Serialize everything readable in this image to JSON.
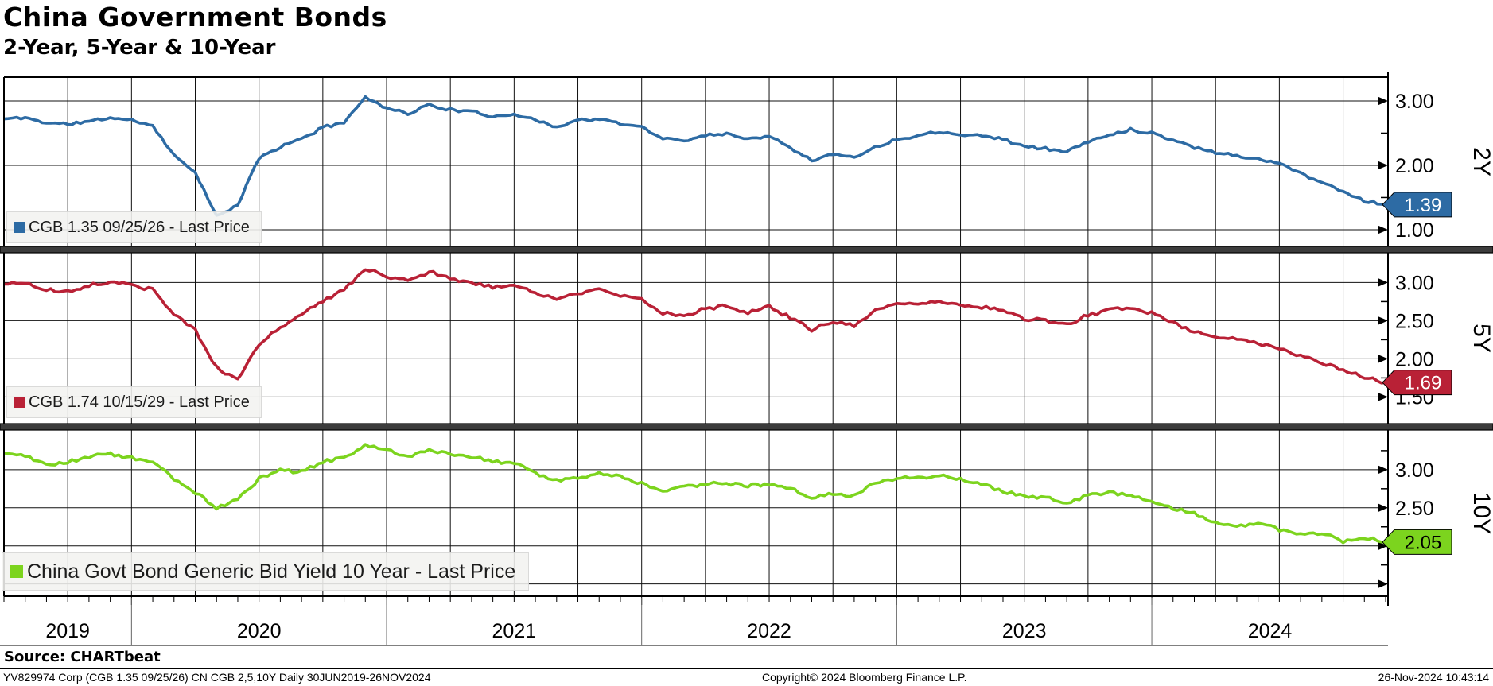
{
  "header": {
    "title": "China Government Bonds",
    "subtitle": "2-Year, 5-Year & 10-Year"
  },
  "chart_data": {
    "type": "line",
    "title": "China Government Bonds",
    "subtitle": "2-Year, 5-Year & 10-Year",
    "x_range": "30JUN2019 - 26NOV2024",
    "x_anchor_frequency": "monthly",
    "x_year_labels": [
      "2019",
      "2020",
      "2021",
      "2022",
      "2023",
      "2024"
    ],
    "grid": "quarterly vertical, labeled horizontal, arrowheads at right axis",
    "legend_position": "bottom-left of each panel",
    "panels": [
      {
        "id": "2Y",
        "axis_label": "2Y",
        "legend": "CGB 1.35 09/25/26 - Last Price",
        "color": "#2D6BA4",
        "last_price": 1.39,
        "badge_label": "1.39",
        "badge_text_color": "#ffffff",
        "ylim": [
          0.74,
          3.37
        ],
        "major_ticks": [
          {
            "v": 3.0,
            "label": "3.00"
          },
          {
            "v": 2.0,
            "label": "2.00"
          },
          {
            "v": 1.0,
            "label": "1.00"
          }
        ],
        "minor_ticks": [
          2.5,
          1.5
        ],
        "values": [
          2.72,
          2.74,
          2.66,
          2.64,
          2.68,
          2.74,
          2.7,
          2.62,
          2.15,
          1.9,
          1.2,
          1.38,
          2.12,
          2.28,
          2.42,
          2.58,
          2.68,
          3.05,
          2.9,
          2.8,
          2.94,
          2.86,
          2.83,
          2.76,
          2.8,
          2.7,
          2.6,
          2.7,
          2.72,
          2.64,
          2.6,
          2.42,
          2.38,
          2.47,
          2.5,
          2.4,
          2.47,
          2.28,
          2.08,
          2.17,
          2.13,
          2.28,
          2.4,
          2.47,
          2.52,
          2.49,
          2.46,
          2.41,
          2.29,
          2.26,
          2.21,
          2.37,
          2.47,
          2.56,
          2.5,
          2.4,
          2.28,
          2.2,
          2.15,
          2.1,
          2.03,
          1.88,
          1.73,
          1.6,
          1.45,
          1.39
        ]
      },
      {
        "id": "5Y",
        "axis_label": "5Y",
        "legend": "CGB 1.74 10/15/29 - Last Price",
        "color": "#B92136",
        "last_price": 1.69,
        "badge_label": "1.69",
        "badge_text_color": "#ffffff",
        "ylim": [
          1.15,
          3.39
        ],
        "major_ticks": [
          {
            "v": 3.0,
            "label": "3.00"
          },
          {
            "v": 2.5,
            "label": "2.50"
          },
          {
            "v": 2.0,
            "label": "2.00"
          },
          {
            "v": 1.5,
            "label": "1.50"
          }
        ],
        "minor_ticks": [
          2.75,
          2.25,
          1.75
        ],
        "values": [
          2.98,
          3.0,
          2.9,
          2.88,
          2.96,
          3.01,
          2.98,
          2.9,
          2.58,
          2.38,
          1.88,
          1.74,
          2.18,
          2.42,
          2.58,
          2.76,
          2.9,
          3.18,
          3.08,
          3.02,
          3.14,
          3.06,
          3.0,
          2.94,
          2.98,
          2.86,
          2.78,
          2.86,
          2.92,
          2.84,
          2.78,
          2.6,
          2.56,
          2.66,
          2.7,
          2.6,
          2.68,
          2.54,
          2.38,
          2.5,
          2.44,
          2.62,
          2.74,
          2.72,
          2.75,
          2.72,
          2.68,
          2.62,
          2.52,
          2.5,
          2.45,
          2.57,
          2.64,
          2.67,
          2.6,
          2.47,
          2.35,
          2.3,
          2.26,
          2.2,
          2.14,
          2.04,
          1.94,
          1.86,
          1.76,
          1.69
        ]
      },
      {
        "id": "10Y",
        "axis_label": "10Y",
        "legend": "China Govt Bond Generic Bid Yield 10 Year - Last Price",
        "color": "#7CD41E",
        "last_price": 2.05,
        "badge_label": "2.05",
        "badge_text_color": "#000000",
        "ylim": [
          1.34,
          3.52
        ],
        "major_ticks": [
          {
            "v": 3.0,
            "label": "3.00"
          },
          {
            "v": 2.5,
            "label": "2.50"
          },
          {
            "v": 2.0,
            "label": ""
          },
          {
            "v": 1.5,
            "label": ""
          }
        ],
        "minor_ticks": [
          3.25,
          2.75,
          2.25,
          1.75
        ],
        "values": [
          3.22,
          3.18,
          3.06,
          3.1,
          3.16,
          3.21,
          3.15,
          3.12,
          2.87,
          2.7,
          2.5,
          2.62,
          2.88,
          3.0,
          2.97,
          3.1,
          3.16,
          3.32,
          3.25,
          3.17,
          3.26,
          3.2,
          3.17,
          3.1,
          3.09,
          2.94,
          2.86,
          2.88,
          2.96,
          2.9,
          2.82,
          2.72,
          2.79,
          2.8,
          2.83,
          2.79,
          2.81,
          2.75,
          2.63,
          2.69,
          2.66,
          2.83,
          2.88,
          2.9,
          2.92,
          2.87,
          2.81,
          2.71,
          2.65,
          2.64,
          2.57,
          2.66,
          2.7,
          2.67,
          2.57,
          2.5,
          2.42,
          2.3,
          2.27,
          2.3,
          2.21,
          2.14,
          2.17,
          2.06,
          2.12,
          2.05
        ]
      }
    ]
  },
  "footer": {
    "source": "Source: CHARTbeat",
    "info_left": "YV829974 Corp (CGB 1.35 09/25/26) CN CGB 2,5,10Y  Daily 30JUN2019-26NOV2024",
    "info_center": "Copyright© 2024 Bloomberg Finance L.P.",
    "info_right": "26-Nov-2024 10:43:14"
  },
  "colors": {
    "background": "#ffffff",
    "grid": "#111111",
    "separator_bar": "#3c3c3c",
    "series_2y": "#2D6BA4",
    "series_5y": "#B92136",
    "series_10y": "#7CD41E",
    "legend_background": "#f2f2f0"
  }
}
